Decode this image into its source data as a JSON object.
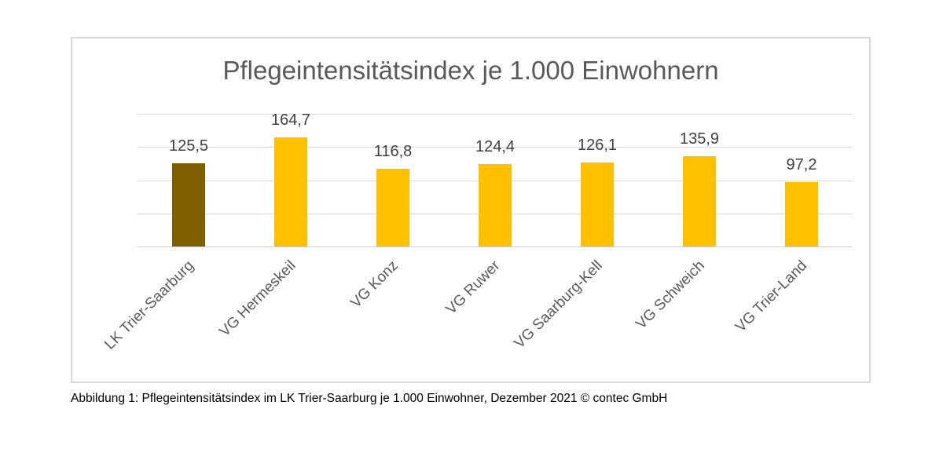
{
  "figure": {
    "caption": "Abbildung 1: Pflegeintensitätsindex im LK Trier-Saarburg je 1.000 Einwohner, Dezember 2021 © contec GmbH"
  },
  "chart_data": {
    "type": "bar",
    "title": "Pflegeintensitätsindex je 1.000 Einwohnern",
    "categories": [
      "LK Trier-Saarburg",
      "VG Hermeskeil",
      "VG Konz",
      "VG Ruwer",
      "VG Saarburg-Kell",
      "VG Schweich",
      "VG Trier-Land"
    ],
    "values": [
      125.5,
      164.7,
      116.8,
      124.4,
      126.1,
      135.9,
      97.2
    ],
    "value_labels": [
      "125,5",
      "164,7",
      "116,8",
      "124,4",
      "126,1",
      "135,9",
      "97,2"
    ],
    "bar_colors": [
      "#7F6000",
      "#FFC000",
      "#FFC000",
      "#FFC000",
      "#FFC000",
      "#FFC000",
      "#FFC000"
    ],
    "series_color": "#FFC000",
    "highlight_color": "#7F6000",
    "xlabel": "",
    "ylabel": "",
    "ylim": [
      0,
      200
    ],
    "grid": true,
    "gridline_step": 50,
    "legend_position": "none",
    "colors": {
      "grid": "#D9D9D9",
      "axis": "#CFCFCF",
      "frame_border": "#D9D9D9",
      "title_text": "#595959",
      "value_text": "#404040",
      "category_text": "#595959"
    }
  }
}
